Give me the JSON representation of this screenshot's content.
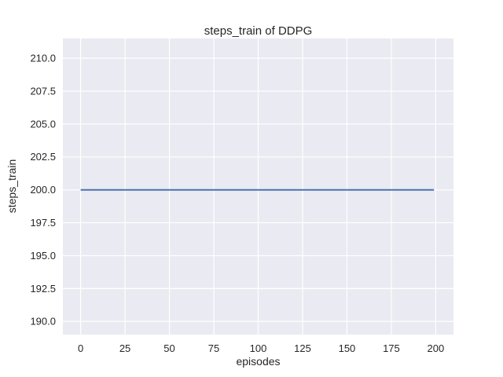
{
  "figure": {
    "title": "steps_train of DDPG",
    "xlabel": "episodes",
    "ylabel": "steps_train"
  },
  "chart_data": {
    "type": "line",
    "title": "steps_train of DDPG",
    "xlabel": "episodes",
    "ylabel": "steps_train",
    "x_ticks": [
      0,
      25,
      50,
      75,
      100,
      125,
      150,
      175,
      200
    ],
    "x_tick_labels": [
      "0",
      "25",
      "50",
      "75",
      "100",
      "125",
      "150",
      "175",
      "200"
    ],
    "y_ticks": [
      190.0,
      192.5,
      195.0,
      197.5,
      200.0,
      202.5,
      205.0,
      207.5,
      210.0
    ],
    "y_tick_labels": [
      "190.0",
      "192.5",
      "195.0",
      "197.5",
      "200.0",
      "202.5",
      "205.0",
      "207.5",
      "210.0"
    ],
    "xlim": [
      -10,
      210
    ],
    "ylim": [
      189.0,
      211.5
    ],
    "grid": true,
    "legend": false,
    "plot_bg_color": "#eaeaf2",
    "grid_color": "#ffffff",
    "text_color": "#262626",
    "series": [
      {
        "name": "steps_train",
        "x": [
          0,
          199
        ],
        "y": [
          200,
          200
        ],
        "color": "#4c72b0",
        "linewidth": 2
      }
    ]
  }
}
